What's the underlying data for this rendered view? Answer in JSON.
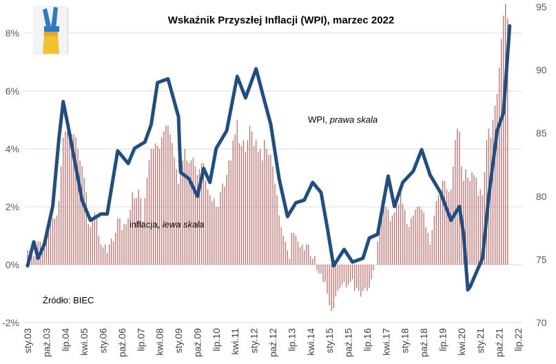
{
  "chart_data": {
    "type": "bar+line",
    "title": "Wskaźnik Przyszłej Inflacji (WPI), marzec 2022",
    "source": "Źródło: BIEC",
    "annotations": {
      "wpi_label": "WPI, ",
      "wpi_label_italic": "prawa skala",
      "infl_label": "inflacja, ",
      "infl_label_italic": "lewa skala"
    },
    "x_tick_labels": [
      "sty.03",
      "paź.03",
      "lip.04",
      "kwi.05",
      "sty.06",
      "paź.06",
      "lip.07",
      "kwi.08",
      "sty.09",
      "paź.09",
      "lip.10",
      "kwi.11",
      "sty.12",
      "paź.12",
      "lip.13",
      "kwi.14",
      "sty.15",
      "paź.15",
      "lip.16",
      "kwi.17",
      "sty.18",
      "paź.18",
      "lip.19",
      "kwi.20",
      "sty.21",
      "paź.21",
      "lip.22"
    ],
    "x_range": [
      "2003-01",
      "2022-07"
    ],
    "left_axis": {
      "ylim": [
        -2,
        9
      ],
      "ticks": [
        -2,
        0,
        2,
        4,
        6,
        8
      ],
      "tick_labels": [
        "-2%",
        "0%",
        "2%",
        "4%",
        "6%",
        "8%"
      ]
    },
    "right_axis": {
      "ylim": [
        70,
        95
      ],
      "ticks": [
        70,
        75,
        80,
        85,
        90,
        95
      ],
      "tick_labels": [
        "70",
        "75",
        "80",
        "85",
        "90",
        "95"
      ]
    },
    "grid": true,
    "colors": {
      "inflation": "#b85450",
      "wpi": "#1f4e82",
      "grid": "#d9d9d9"
    },
    "series": [
      {
        "name": "inflacja",
        "type": "bar",
        "axis": "left",
        "start": "2003-01",
        "frequency": "monthly",
        "values": [
          0.5,
          0.5,
          0.6,
          0.3,
          0.4,
          0.8,
          0.8,
          0.7,
          0.9,
          1.3,
          1.6,
          1.7,
          1.6,
          1.6,
          1.7,
          2.2,
          3.4,
          4.4,
          4.6,
          4.6,
          4.4,
          4.5,
          4.5,
          4.4,
          4.0,
          3.6,
          3.4,
          3.0,
          2.5,
          1.4,
          1.3,
          1.6,
          1.8,
          1.6,
          1.0,
          0.7,
          0.6,
          0.7,
          0.4,
          0.7,
          0.9,
          0.8,
          1.1,
          1.6,
          1.6,
          1.2,
          1.4,
          1.4,
          1.6,
          1.9,
          2.5,
          2.3,
          2.3,
          2.6,
          2.3,
          1.5,
          2.3,
          3.0,
          3.6,
          4.0,
          4.0,
          4.2,
          4.1,
          4.0,
          4.4,
          4.6,
          4.8,
          4.8,
          4.5,
          4.2,
          3.7,
          3.3,
          2.8,
          3.3,
          3.6,
          4.0,
          3.6,
          3.5,
          3.6,
          3.7,
          3.4,
          3.1,
          3.3,
          3.5,
          3.5,
          2.9,
          2.6,
          2.4,
          2.2,
          2.3,
          2.0,
          2.0,
          2.5,
          2.8,
          2.7,
          3.1,
          3.6,
          3.6,
          4.3,
          4.5,
          5.0,
          4.2,
          4.1,
          4.3,
          3.9,
          4.3,
          4.8,
          4.6,
          4.1,
          4.3,
          3.9,
          4.0,
          3.6,
          4.3,
          4.0,
          3.8,
          3.8,
          3.4,
          2.8,
          2.4,
          1.7,
          1.3,
          1.0,
          0.8,
          0.5,
          0.2,
          1.1,
          1.1,
          1.0,
          0.8,
          0.6,
          0.7,
          0.5,
          0.7,
          0.7,
          0.3,
          0.2,
          0.3,
          -0.2,
          -0.3,
          -0.3,
          -0.6,
          -0.6,
          -1.0,
          -1.4,
          -1.6,
          -1.5,
          -1.1,
          -0.9,
          -0.8,
          -0.7,
          -0.6,
          -0.8,
          -0.7,
          -0.6,
          -0.5,
          -0.9,
          -0.8,
          -0.9,
          -1.1,
          -0.9,
          -0.8,
          -0.9,
          -0.8,
          -0.5,
          -0.2,
          0.0,
          0.8,
          1.7,
          2.2,
          2.0,
          2.0,
          1.9,
          1.5,
          1.7,
          1.8,
          2.2,
          2.1,
          2.5,
          2.1,
          1.9,
          1.4,
          1.3,
          1.6,
          1.7,
          1.9,
          2.0,
          2.0,
          1.9,
          1.8,
          1.3,
          1.1,
          0.7,
          1.2,
          1.7,
          2.2,
          2.4,
          2.6,
          2.9,
          2.9,
          2.6,
          2.5,
          2.6,
          3.4,
          4.3,
          4.7,
          4.6,
          3.4,
          2.9,
          3.3,
          3.0,
          2.9,
          3.2,
          3.1,
          3.0,
          2.4,
          2.6,
          2.4,
          3.2,
          4.3,
          4.7,
          4.4,
          5.0,
          5.5,
          5.9,
          6.8,
          7.8,
          8.6,
          9.0,
          8.5
        ]
      },
      {
        "name": "WPI",
        "type": "line",
        "axis": "right",
        "points": [
          [
            "2003-01",
            74.5
          ],
          [
            "2003-04",
            76.4
          ],
          [
            "2003-06",
            75.1
          ],
          [
            "2003-09",
            76.2
          ],
          [
            "2004-01",
            79.2
          ],
          [
            "2004-04",
            84.6
          ],
          [
            "2004-06",
            87.5
          ],
          [
            "2004-09",
            85.0
          ],
          [
            "2005-03",
            79.7
          ],
          [
            "2005-07",
            78.1
          ],
          [
            "2005-12",
            78.6
          ],
          [
            "2006-03",
            78.6
          ],
          [
            "2006-08",
            83.6
          ],
          [
            "2007-01",
            82.6
          ],
          [
            "2007-04",
            83.8
          ],
          [
            "2007-09",
            84.3
          ],
          [
            "2007-12",
            85.7
          ],
          [
            "2008-03",
            89.0
          ],
          [
            "2008-08",
            89.3
          ],
          [
            "2009-01",
            86.3
          ],
          [
            "2009-02",
            81.9
          ],
          [
            "2009-06",
            81.4
          ],
          [
            "2009-10",
            80.0
          ],
          [
            "2010-01",
            82.2
          ],
          [
            "2010-04",
            81.1
          ],
          [
            "2010-07",
            83.8
          ],
          [
            "2010-12",
            85.2
          ],
          [
            "2011-05",
            89.5
          ],
          [
            "2011-09",
            87.8
          ],
          [
            "2012-02",
            90.1
          ],
          [
            "2012-05",
            88.2
          ],
          [
            "2012-09",
            85.7
          ],
          [
            "2013-01",
            81.4
          ],
          [
            "2013-05",
            78.4
          ],
          [
            "2013-09",
            79.5
          ],
          [
            "2014-01",
            79.7
          ],
          [
            "2014-05",
            81.1
          ],
          [
            "2014-09",
            80.3
          ],
          [
            "2014-12",
            77.5
          ],
          [
            "2015-03",
            74.5
          ],
          [
            "2015-08",
            75.8
          ],
          [
            "2015-12",
            74.8
          ],
          [
            "2016-05",
            75.1
          ],
          [
            "2016-08",
            76.7
          ],
          [
            "2016-12",
            77.0
          ],
          [
            "2017-05",
            81.6
          ],
          [
            "2017-08",
            79.2
          ],
          [
            "2017-12",
            81.1
          ],
          [
            "2018-05",
            82.0
          ],
          [
            "2018-09",
            83.7
          ],
          [
            "2019-01",
            81.7
          ],
          [
            "2019-06",
            80.3
          ],
          [
            "2019-11",
            78.1
          ],
          [
            "2020-03",
            79.2
          ],
          [
            "2020-05",
            77.0
          ],
          [
            "2020-07",
            72.6
          ],
          [
            "2020-08",
            72.8
          ],
          [
            "2021-02",
            75.1
          ],
          [
            "2021-05",
            80.0
          ],
          [
            "2021-09",
            85.2
          ],
          [
            "2021-12",
            86.6
          ],
          [
            "2022-03",
            93.5
          ]
        ]
      }
    ]
  }
}
